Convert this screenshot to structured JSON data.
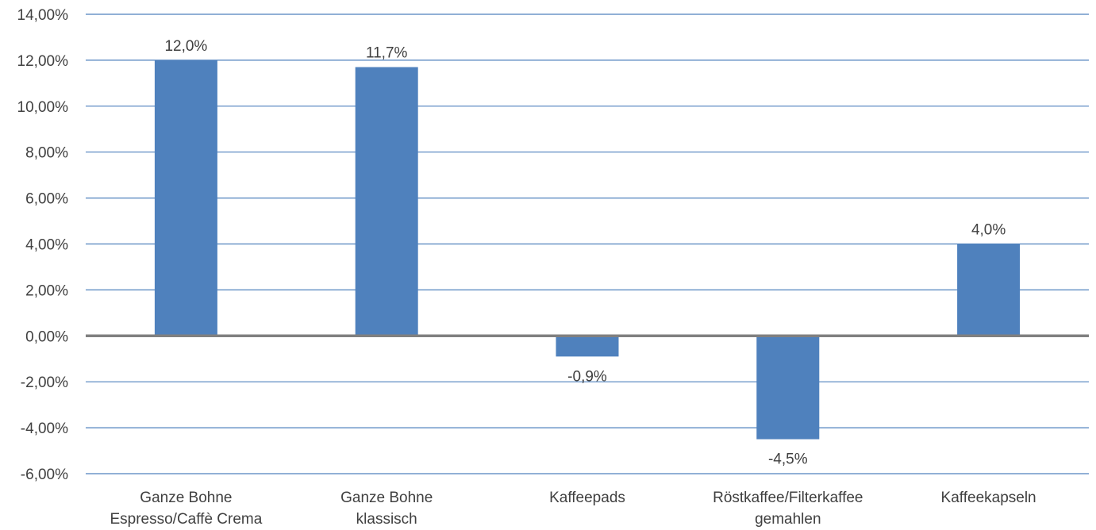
{
  "chart_data": {
    "type": "bar",
    "categories": [
      [
        "Ganze Bohne",
        "Espresso/Caffè Crema"
      ],
      [
        "Ganze Bohne",
        "klassisch"
      ],
      [
        "Kaffeepads"
      ],
      [
        "Röstkaffee/Filterkaffee",
        "gemahlen"
      ],
      [
        "Kaffeekapseln"
      ]
    ],
    "series": [
      {
        "values": [
          12.0,
          11.7,
          -0.9,
          -4.5,
          4.0
        ],
        "data_labels": [
          "12,0%",
          "11,7%",
          "-0,9%",
          "-4,5%",
          "4,0%"
        ]
      }
    ],
    "ylim": [
      -6,
      14
    ],
    "yticks": [
      14,
      12,
      10,
      8,
      6,
      4,
      2,
      0,
      -2,
      -4,
      -6
    ],
    "ytick_labels": [
      "14,00%",
      "12,00%",
      "10,00%",
      "8,00%",
      "6,00%",
      "4,00%",
      "2,00%",
      "0,00%",
      "-2,00%",
      "-4,00%",
      "-6,00%"
    ],
    "grid": true,
    "legend": "none",
    "colors": {
      "bar": "#4f81bd",
      "grid": "#4f81bd",
      "zero_line": "#808080",
      "text": "#404040"
    }
  }
}
